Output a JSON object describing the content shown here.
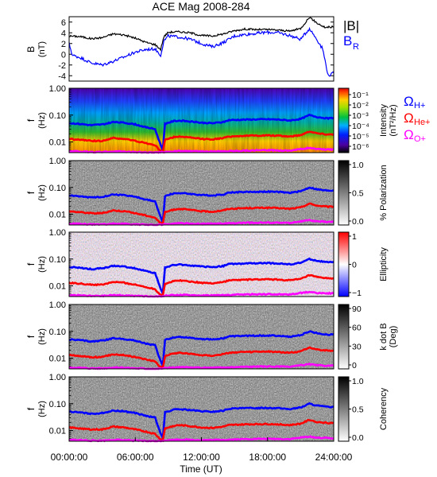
{
  "chart_data": {
    "type": "spectrogram_stack",
    "title": "ACE Mag 2008-284",
    "xlabel": "Time (UT)",
    "x_ticks": [
      "00:00:00",
      "06:00:00",
      "12:00:00",
      "18:00:00",
      "24:00:00"
    ],
    "x_range_hours": [
      0,
      24
    ],
    "top_panel": {
      "ylabel": "B",
      "yunit": "(nT)",
      "ylim": [
        -5,
        7
      ],
      "y_ticks": [
        "6",
        "4",
        "2",
        "0",
        "-2",
        "-4"
      ],
      "series": [
        {
          "name": "|B|",
          "color": "#000000",
          "points": [
            [
              0,
              3.4
            ],
            [
              1,
              3.3
            ],
            [
              2,
              2.9
            ],
            [
              3,
              3.1
            ],
            [
              4,
              3.8
            ],
            [
              5,
              3.6
            ],
            [
              6,
              3.0
            ],
            [
              7,
              2.2
            ],
            [
              7.8,
              1.8
            ],
            [
              8.3,
              0.9
            ],
            [
              8.6,
              3.3
            ],
            [
              9,
              4.1
            ],
            [
              10,
              4.2
            ],
            [
              11,
              4.0
            ],
            [
              12,
              3.5
            ],
            [
              13,
              3.4
            ],
            [
              14,
              3.8
            ],
            [
              15,
              4.4
            ],
            [
              16,
              4.7
            ],
            [
              17,
              4.6
            ],
            [
              18,
              4.6
            ],
            [
              19,
              4.5
            ],
            [
              20,
              4.3
            ],
            [
              21,
              4.8
            ],
            [
              21.8,
              6.9
            ],
            [
              22.5,
              5.8
            ],
            [
              23.2,
              5.0
            ],
            [
              24,
              5.1
            ]
          ]
        },
        {
          "name": "B_R",
          "color": "#0000ff",
          "points": [
            [
              0,
              2.0
            ],
            [
              0.3,
              -0.2
            ],
            [
              1,
              -0.6
            ],
            [
              2,
              -1.6
            ],
            [
              3,
              -2.0
            ],
            [
              4,
              -1.3
            ],
            [
              5,
              -0.5
            ],
            [
              6,
              0.4
            ],
            [
              7,
              0.9
            ],
            [
              7.8,
              1.0
            ],
            [
              8.3,
              -0.2
            ],
            [
              8.6,
              2.5
            ],
            [
              9,
              3.4
            ],
            [
              10,
              3.2
            ],
            [
              11,
              2.8
            ],
            [
              12,
              2.0
            ],
            [
              13,
              1.4
            ],
            [
              14,
              2.2
            ],
            [
              15,
              3.4
            ],
            [
              16,
              3.7
            ],
            [
              17,
              3.9
            ],
            [
              18,
              4.1
            ],
            [
              19,
              4.0
            ],
            [
              20,
              3.5
            ],
            [
              21,
              2.8
            ],
            [
              21.8,
              4.8
            ],
            [
              22.4,
              3.0
            ],
            [
              23,
              1.0
            ],
            [
              23.5,
              -4.0
            ],
            [
              24,
              -3.5
            ]
          ]
        }
      ],
      "legend": [
        {
          "label": "|B|",
          "color": "#000000"
        },
        {
          "label": "B",
          "sub": "R",
          "color": "#0000ff"
        }
      ]
    },
    "spectrogram_panels": [
      {
        "ylabel": "f",
        "yunit": "(Hz)",
        "colormap": "rainbow",
        "colorbar_label": "Intensity",
        "colorbar_unit": "(nT²/Hz)",
        "colorbar_ticks": [
          "10⁻¹",
          "10⁻²",
          "10⁻³",
          "10⁻⁴",
          "10⁻⁵",
          "10⁻⁶"
        ],
        "legend": [
          {
            "symbol": "Ω",
            "sub": "H+",
            "color": "#0000ff"
          },
          {
            "symbol": "Ω",
            "sub": "He+",
            "color": "#ff0000"
          },
          {
            "symbol": "Ω",
            "sub": "O+",
            "color": "#ff00ff"
          }
        ]
      },
      {
        "ylabel": "f",
        "yunit": "(Hz)",
        "colormap": "gray",
        "colorbar_label": "% Polarization",
        "colorbar_ticks": [
          "1.0",
          "0.5",
          "0.0"
        ]
      },
      {
        "ylabel": "f",
        "yunit": "(Hz)",
        "colormap": "bwr",
        "colorbar_label": "Ellipticity",
        "colorbar_ticks": [
          "1",
          "0",
          "−1"
        ]
      },
      {
        "ylabel": "f",
        "yunit": "(Hz)",
        "colormap": "gray",
        "colorbar_label": "k dot B",
        "colorbar_unit": "(Deg)",
        "colorbar_ticks": [
          "90",
          "60",
          "30",
          "0"
        ]
      },
      {
        "ylabel": "f",
        "yunit": "(Hz)",
        "colormap": "gray",
        "colorbar_label": "Coherency",
        "colorbar_ticks": [
          "1.0",
          "0.5",
          "0.0"
        ]
      }
    ],
    "freq_axis": {
      "scale": "log",
      "range_hz": [
        0.004,
        1.0
      ],
      "ticks": [
        {
          "v": 1.0,
          "label": "1.00"
        },
        {
          "v": 0.1,
          "label": "0.10"
        },
        {
          "v": 0.01,
          "label": "0.01"
        }
      ]
    },
    "gyrofrequency_lines": [
      {
        "name": "H+",
        "color": "#0000ff",
        "points": [
          [
            0,
            0.05
          ],
          [
            1,
            0.047
          ],
          [
            2,
            0.042
          ],
          [
            3,
            0.045
          ],
          [
            4,
            0.055
          ],
          [
            5,
            0.052
          ],
          [
            6,
            0.045
          ],
          [
            7,
            0.035
          ],
          [
            7.8,
            0.03
          ],
          [
            8.2,
            0.01
          ],
          [
            8.5,
            0.005
          ],
          [
            8.7,
            0.048
          ],
          [
            9.5,
            0.06
          ],
          [
            10,
            0.062
          ],
          [
            11,
            0.058
          ],
          [
            12,
            0.052
          ],
          [
            13,
            0.05
          ],
          [
            14,
            0.055
          ],
          [
            14.5,
            0.065
          ],
          [
            16,
            0.068
          ],
          [
            18,
            0.07
          ],
          [
            19,
            0.068
          ],
          [
            20,
            0.063
          ],
          [
            21,
            0.072
          ],
          [
            21.8,
            0.1
          ],
          [
            22.5,
            0.085
          ],
          [
            23.5,
            0.075
          ],
          [
            24,
            0.078
          ]
        ]
      },
      {
        "name": "He+",
        "color": "#ff0000",
        "points": [
          [
            0,
            0.013
          ],
          [
            1,
            0.012
          ],
          [
            2,
            0.011
          ],
          [
            3,
            0.011
          ],
          [
            4,
            0.014
          ],
          [
            5,
            0.013
          ],
          [
            6,
            0.011
          ],
          [
            7,
            0.009
          ],
          [
            7.8,
            0.0075
          ],
          [
            8.2,
            0.005
          ],
          [
            8.5,
            0.0045
          ],
          [
            8.7,
            0.012
          ],
          [
            9.5,
            0.015
          ],
          [
            10,
            0.016
          ],
          [
            11,
            0.0145
          ],
          [
            12,
            0.013
          ],
          [
            13,
            0.0125
          ],
          [
            14,
            0.014
          ],
          [
            14.5,
            0.016
          ],
          [
            16,
            0.017
          ],
          [
            18,
            0.0175
          ],
          [
            19,
            0.017
          ],
          [
            20,
            0.016
          ],
          [
            21,
            0.018
          ],
          [
            21.8,
            0.025
          ],
          [
            22.5,
            0.021
          ],
          [
            23.5,
            0.019
          ],
          [
            24,
            0.0195
          ]
        ]
      },
      {
        "name": "O+",
        "color": "#ff00ff",
        "points": [
          [
            0,
            0.0045
          ],
          [
            1,
            0.0044
          ],
          [
            2,
            0.0042
          ],
          [
            3,
            0.0042
          ],
          [
            4,
            0.0045
          ],
          [
            5,
            0.0044
          ],
          [
            6,
            0.0042
          ],
          [
            7,
            0.0041
          ],
          [
            8,
            0.004
          ],
          [
            8.7,
            0.0043
          ],
          [
            10,
            0.0046
          ],
          [
            12,
            0.0044
          ],
          [
            14,
            0.0045
          ],
          [
            16,
            0.0048
          ],
          [
            18,
            0.0049
          ],
          [
            20,
            0.0048
          ],
          [
            21.8,
            0.006
          ],
          [
            22.5,
            0.0054
          ],
          [
            24,
            0.0052
          ]
        ]
      }
    ]
  }
}
